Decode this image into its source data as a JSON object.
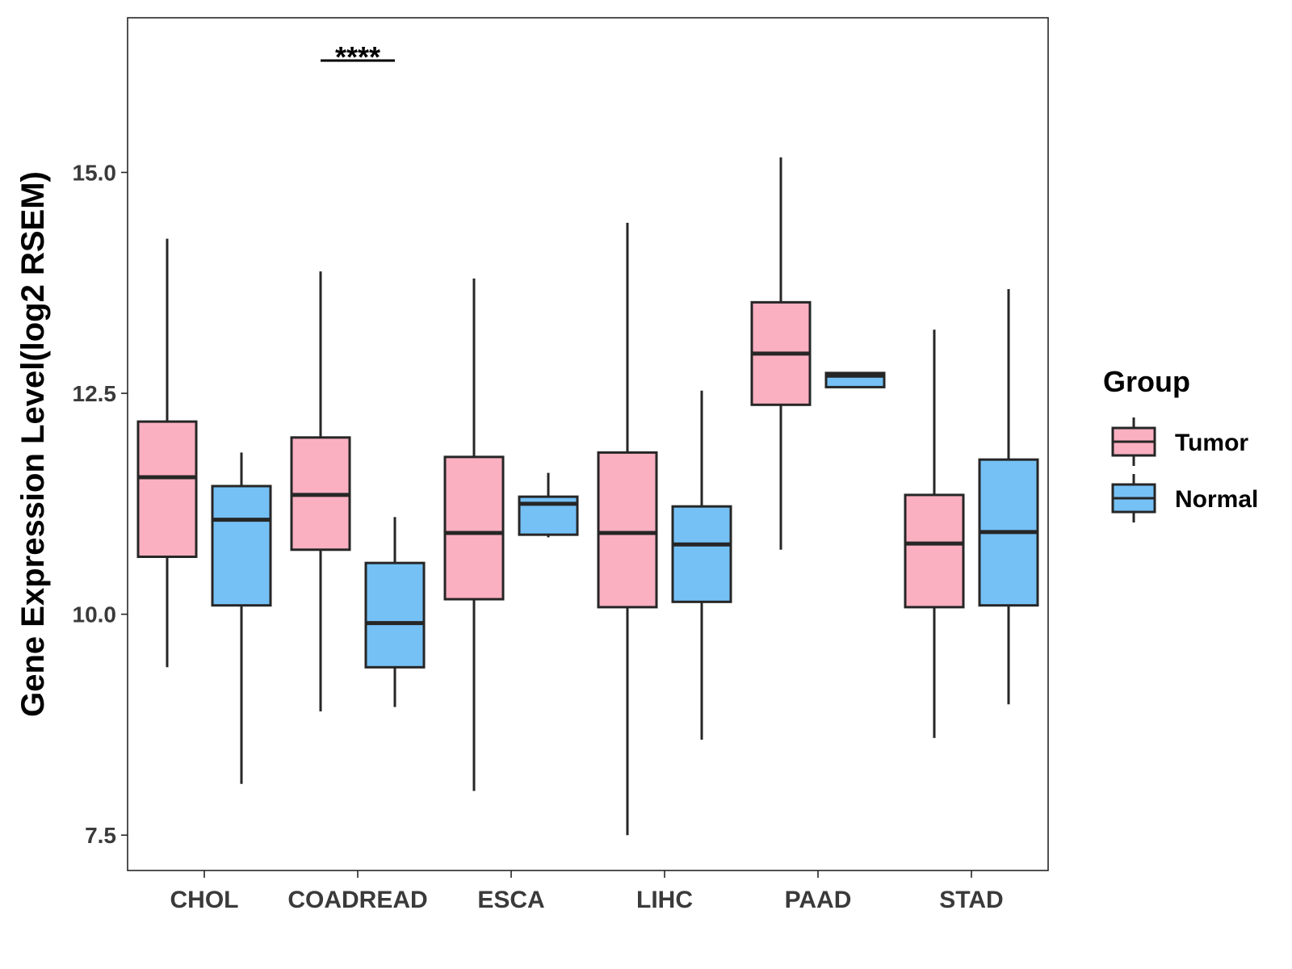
{
  "chart_data": {
    "type": "box",
    "title": "",
    "xlabel": "",
    "ylabel": "Gene Expression Level(log2 RSEM)",
    "ylim": [
      7.1,
      16.75
    ],
    "yticks": [
      {
        "value": 7.5,
        "label": "7.5"
      },
      {
        "value": 10.0,
        "label": "10.0"
      },
      {
        "value": 12.5,
        "label": "12.5"
      },
      {
        "value": 15.0,
        "label": "15.0"
      }
    ],
    "grid": false,
    "categories": [
      "CHOL",
      "COADREAD",
      "ESCA",
      "LIHC",
      "PAAD",
      "STAD"
    ],
    "legend": {
      "title": "Group",
      "placement": "right",
      "entries": [
        "Tumor",
        "Normal"
      ]
    },
    "colors": {
      "Tumor": "#fbb0c1",
      "Normal": "#75c1f6",
      "outline": "#262626"
    },
    "series": [
      {
        "name": "Tumor",
        "boxes": [
          {
            "category": "CHOL",
            "min": 9.4,
            "q1": 10.65,
            "median": 11.55,
            "q3": 12.18,
            "max": 14.25
          },
          {
            "category": "COADREAD",
            "min": 8.9,
            "q1": 10.73,
            "median": 11.35,
            "q3": 12.0,
            "max": 13.88
          },
          {
            "category": "ESCA",
            "min": 8.0,
            "q1": 10.17,
            "median": 10.92,
            "q3": 11.78,
            "max": 13.8
          },
          {
            "category": "LIHC",
            "min": 7.5,
            "q1": 10.08,
            "median": 10.92,
            "q3": 11.83,
            "max": 14.43
          },
          {
            "category": "PAAD",
            "min": 10.73,
            "q1": 12.37,
            "median": 12.95,
            "q3": 13.53,
            "max": 15.17
          },
          {
            "category": "STAD",
            "min": 8.6,
            "q1": 10.08,
            "median": 10.8,
            "q3": 11.35,
            "max": 13.22
          }
        ]
      },
      {
        "name": "Normal",
        "boxes": [
          {
            "category": "CHOL",
            "min": 8.08,
            "q1": 10.1,
            "median": 11.07,
            "q3": 11.45,
            "max": 11.83
          },
          {
            "category": "COADREAD",
            "min": 8.95,
            "q1": 9.4,
            "median": 9.9,
            "q3": 10.58,
            "max": 11.1
          },
          {
            "category": "ESCA",
            "min": 10.87,
            "q1": 10.9,
            "median": 11.25,
            "q3": 11.33,
            "max": 11.6
          },
          {
            "category": "LIHC",
            "min": 8.58,
            "q1": 10.14,
            "median": 10.79,
            "q3": 11.22,
            "max": 12.53
          },
          {
            "category": "PAAD",
            "min": 12.57,
            "q1": 12.57,
            "median": 12.7,
            "q3": 12.73,
            "max": 12.73
          },
          {
            "category": "STAD",
            "min": 8.98,
            "q1": 10.1,
            "median": 10.93,
            "q3": 11.75,
            "max": 13.68
          }
        ]
      }
    ],
    "annotations": [
      {
        "category": "COADREAD",
        "label": "****"
      }
    ]
  }
}
